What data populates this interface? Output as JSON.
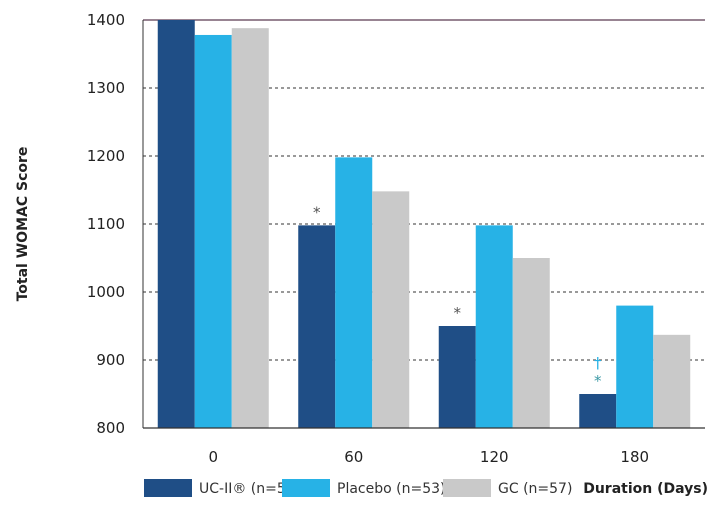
{
  "chart_data": {
    "type": "bar",
    "ylabel": "Total WOMAC Score",
    "xlabel": "Duration (Days)",
    "categories": [
      "0",
      "60",
      "120",
      "180"
    ],
    "ylim": [
      800,
      1400
    ],
    "yticks": [
      800,
      900,
      1000,
      1100,
      1200,
      1300,
      1400
    ],
    "grid": "horizontal dashed",
    "legend_position": "bottom",
    "series": [
      {
        "name": "UC-II® (n=54)",
        "color": "#1f4e86",
        "values": [
          1400,
          1098,
          950,
          850
        ]
      },
      {
        "name": "Placebo (n=53)",
        "color": "#27b2e6",
        "values": [
          1378,
          1198,
          1098,
          980
        ]
      },
      {
        "name": "GC (n=57)",
        "color": "#c9c9c9",
        "values": [
          1388,
          1148,
          1050,
          937
        ]
      }
    ],
    "annotations": [
      {
        "category": "60",
        "series": "UC-II® (n=54)",
        "text": "*",
        "color": "#555555"
      },
      {
        "category": "120",
        "series": "UC-II® (n=54)",
        "text": "*",
        "color": "#555555"
      },
      {
        "category": "180",
        "series": "UC-II® (n=54)",
        "text": "*",
        "color": "#3d9aa6"
      },
      {
        "category": "180",
        "series": "UC-II® (n=54)",
        "text": "†",
        "color": "#27b2e6"
      }
    ]
  }
}
